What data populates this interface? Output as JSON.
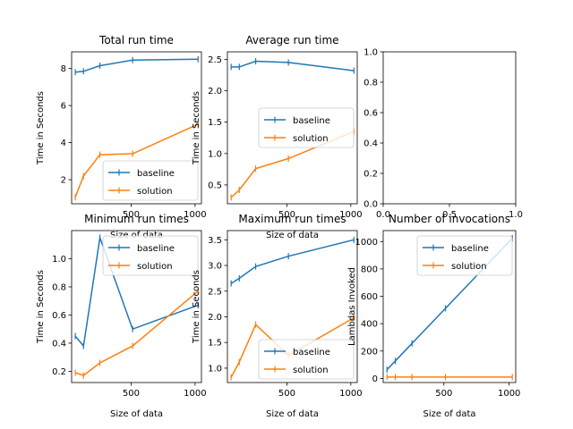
{
  "figure": {
    "colors": {
      "baseline": "#1f77b4",
      "solution": "#ff7f0e"
    }
  },
  "chart_data": [
    {
      "type": "line",
      "title": "Total run time",
      "xlabel": "Size of data",
      "ylabel": "Time in Seconds",
      "legend": "lower-right",
      "xlim": [
        35,
        1050
      ],
      "ylim": [
        0.7,
        8.9
      ],
      "xticks": [
        500,
        1000
      ],
      "yticks": [
        2,
        4,
        6,
        8
      ],
      "x": [
        64,
        128,
        256,
        512,
        1024
      ],
      "series": [
        {
          "name": "baseline",
          "values": [
            7.8,
            7.85,
            8.15,
            8.45,
            8.5
          ]
        },
        {
          "name": "solution",
          "values": [
            1.05,
            2.2,
            3.35,
            3.4,
            5.0
          ]
        }
      ]
    },
    {
      "type": "line",
      "title": "Average run time",
      "xlabel": "Size of data",
      "ylabel": "Time in Seconds",
      "legend": "center-right",
      "xlim": [
        35,
        1050
      ],
      "ylim": [
        0.2,
        2.62
      ],
      "xticks": [
        500,
        1000
      ],
      "yticks": [
        0.5,
        1.0,
        1.5,
        2.0,
        2.5
      ],
      "x": [
        64,
        128,
        256,
        512,
        1024
      ],
      "series": [
        {
          "name": "baseline",
          "values": [
            2.38,
            2.38,
            2.47,
            2.45,
            2.32
          ]
        },
        {
          "name": "solution",
          "values": [
            0.3,
            0.42,
            0.76,
            0.92,
            1.35
          ]
        }
      ]
    },
    {
      "type": "line",
      "title": "",
      "xlabel": "",
      "ylabel": "",
      "legend": "none",
      "xlim": [
        0,
        1
      ],
      "ylim": [
        0,
        1
      ],
      "xticks": [
        0.0,
        0.5,
        1.0
      ],
      "yticks": [
        0.0,
        0.2,
        0.4,
        0.6,
        0.8,
        1.0
      ],
      "x": [],
      "series": []
    },
    {
      "type": "line",
      "title": "Minimum run times",
      "xlabel": "Size of data",
      "ylabel": "Time in Seconds",
      "legend": "upper-right",
      "xlim": [
        35,
        1050
      ],
      "ylim": [
        0.12,
        1.2
      ],
      "xticks": [
        500,
        1000
      ],
      "yticks": [
        0.2,
        0.4,
        0.6,
        0.8,
        1.0
      ],
      "x": [
        64,
        128,
        256,
        512,
        1024
      ],
      "series": [
        {
          "name": "baseline",
          "values": [
            0.45,
            0.38,
            1.15,
            0.5,
            0.67
          ]
        },
        {
          "name": "solution",
          "values": [
            0.19,
            0.17,
            0.26,
            0.38,
            0.77
          ]
        }
      ]
    },
    {
      "type": "line",
      "title": "Maximum run times",
      "xlabel": "Size of data",
      "ylabel": "Time in Seconds",
      "legend": "lower-right",
      "xlim": [
        35,
        1050
      ],
      "ylim": [
        0.72,
        3.68
      ],
      "xticks": [
        500,
        1000
      ],
      "yticks": [
        1.0,
        1.5,
        2.0,
        2.5,
        3.0,
        3.5
      ],
      "x": [
        64,
        128,
        256,
        512,
        1024
      ],
      "series": [
        {
          "name": "baseline",
          "values": [
            2.65,
            2.75,
            2.98,
            3.18,
            3.5
          ]
        },
        {
          "name": "solution",
          "values": [
            0.82,
            1.12,
            1.85,
            1.25,
            1.98
          ]
        }
      ]
    },
    {
      "type": "line",
      "title": "Number of invocations",
      "xlabel": "Size of data",
      "ylabel": "Lambdas Invoked",
      "legend": "upper-right",
      "xlim": [
        35,
        1050
      ],
      "ylim": [
        -30,
        1080
      ],
      "xticks": [
        500,
        1000
      ],
      "yticks": [
        0,
        200,
        400,
        600,
        800,
        1000
      ],
      "x": [
        64,
        128,
        256,
        512,
        1024
      ],
      "series": [
        {
          "name": "baseline",
          "values": [
            64,
            128,
            256,
            512,
            1024
          ]
        },
        {
          "name": "solution",
          "values": [
            10,
            10,
            10,
            10,
            10
          ]
        }
      ]
    }
  ]
}
